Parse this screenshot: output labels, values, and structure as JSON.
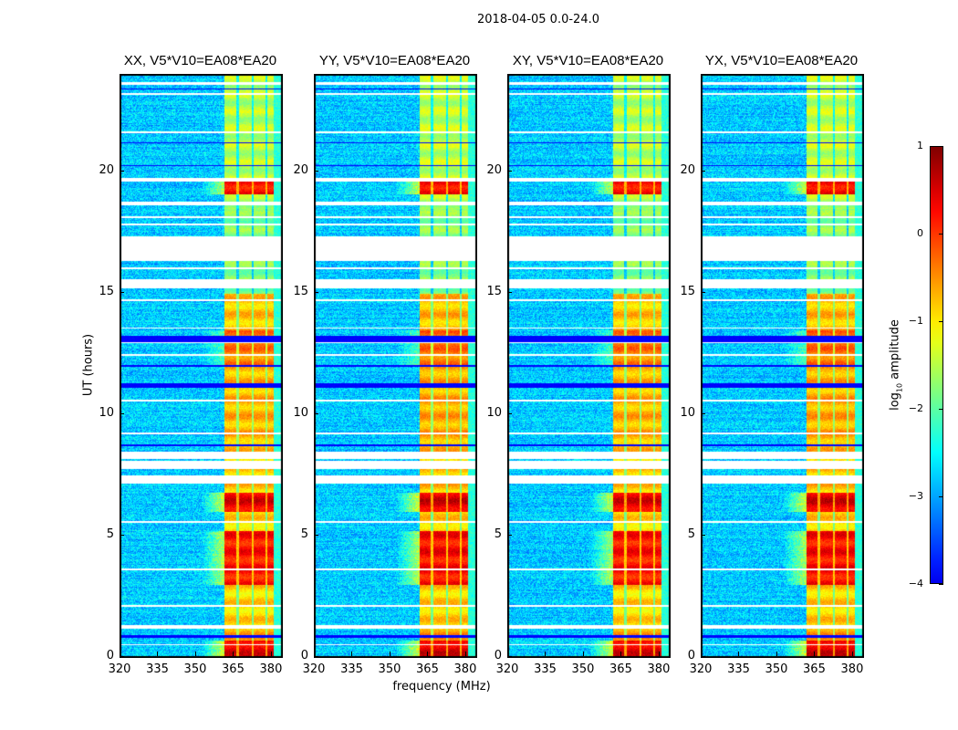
{
  "suptitle": "2018-04-05 0.0-24.0",
  "chart_data": {
    "type": "heatmap",
    "title": "2018-04-05 0.0-24.0",
    "panels": [
      {
        "title": "XX, V5*V10=EA08*EA20",
        "seed": 11
      },
      {
        "title": "YY, V5*V10=EA08*EA20",
        "seed": 23
      },
      {
        "title": "XY, V5*V10=EA08*EA20",
        "seed": 37
      },
      {
        "title": "YX, V5*V10=EA08*EA20",
        "seed": 51
      }
    ],
    "xlabel": "frequency (MHz)",
    "ylabel": "UT (hours)",
    "xlim": [
      320,
      384
    ],
    "ylim": [
      0,
      24
    ],
    "xticks": [
      "320",
      "335",
      "350",
      "365",
      "380"
    ],
    "yticks": [
      "0",
      "5",
      "10",
      "15",
      "20"
    ],
    "colorbar": {
      "label_main": "log",
      "label_sub": "10",
      "label_rest": " amplitude",
      "range": [
        -4,
        1
      ],
      "ticks": [
        "−4",
        "−3",
        "−2",
        "−1",
        "0",
        "1"
      ],
      "colormap": "jet"
    },
    "background_level": -2.8,
    "rfi_band_mhz": [
      361,
      380.5
    ],
    "rfi_channel_gaps_mhz": [
      366.3,
      372.3,
      377.6
    ],
    "rfi_levels": [
      {
        "hours": [
          0,
          0.7
        ],
        "level": 0.4
      },
      {
        "hours": [
          0.7,
          1.3
        ],
        "level": -0.6
      },
      {
        "hours": [
          1.3,
          3.0
        ],
        "level": -0.9
      },
      {
        "hours": [
          3.0,
          5.2
        ],
        "level": 0.2
      },
      {
        "hours": [
          5.2,
          6.0
        ],
        "level": -0.9
      },
      {
        "hours": [
          6.0,
          6.8
        ],
        "level": 0.4
      },
      {
        "hours": [
          6.8,
          8.7
        ],
        "level": -0.8
      },
      {
        "hours": [
          8.7,
          12.0
        ],
        "level": -0.7
      },
      {
        "hours": [
          12.0,
          13.5
        ],
        "level": -0.4
      },
      {
        "hours": [
          13.5,
          15.0
        ],
        "level": -0.8
      },
      {
        "hours": [
          15.0,
          18.5
        ],
        "level": -1.8
      },
      {
        "hours": [
          18.5,
          19.1
        ],
        "level": -1.6
      },
      {
        "hours": [
          19.1,
          19.7
        ],
        "level": 0.3
      },
      {
        "hours": [
          19.7,
          24.0
        ],
        "level": -1.5
      }
    ],
    "flagged_hours": [
      [
        16.35,
        17.35
      ],
      [
        15.2,
        15.6
      ],
      [
        7.15,
        7.5
      ],
      [
        7.75,
        8.1
      ],
      [
        8.2,
        8.5
      ],
      [
        1.2,
        1.35
      ],
      [
        18.65,
        18.8
      ],
      [
        19.6,
        19.75
      ],
      [
        5.55,
        5.62
      ],
      [
        3.6,
        3.66
      ],
      [
        12.45,
        12.52
      ],
      [
        14.7,
        14.78
      ],
      [
        10.55,
        10.62
      ],
      [
        17.8,
        17.9
      ],
      [
        18.1,
        18.2
      ],
      [
        21.6,
        21.68
      ],
      [
        23.2,
        23.28
      ],
      [
        23.6,
        23.7
      ],
      [
        9.2,
        9.28
      ],
      [
        0.5,
        0.56
      ],
      [
        2.1,
        2.16
      ],
      [
        12.95,
        13.0
      ],
      [
        16.0,
        16.1
      ],
      [
        13.55,
        13.6
      ]
    ],
    "dark_rows_hours": [
      [
        13.0,
        13.25
      ],
      [
        11.1,
        11.3
      ],
      [
        0.82,
        0.92
      ],
      [
        12.0,
        12.06
      ],
      [
        8.72,
        8.8
      ],
      [
        23.4,
        23.45
      ],
      [
        20.25,
        20.3
      ],
      [
        21.2,
        21.25
      ]
    ]
  }
}
